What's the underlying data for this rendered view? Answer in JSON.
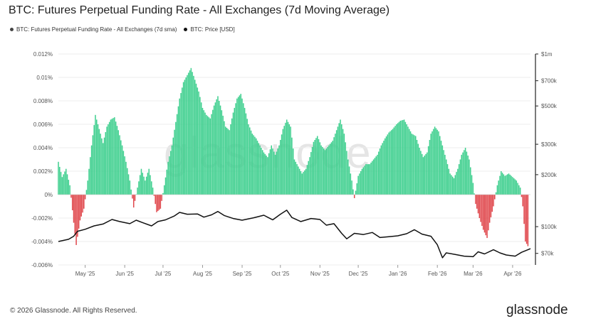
{
  "title": "BTC: Futures Perpetual Funding Rate - All Exchanges (7d Moving Average)",
  "watermark": "glassnode",
  "footer": "© 2026 Glassnode. All Rights Reserved.",
  "brand": "glassnode",
  "colors": {
    "positive": "#3ecf8e",
    "negative": "#e0474c",
    "price": "#111111",
    "grid": "#ececec",
    "axis_text": "#555555"
  },
  "chart_data": {
    "type": "bar",
    "title": "BTC: Futures Perpetual Funding Rate - All Exchanges (7d Moving Average)",
    "legend_position": "top-left",
    "grid": true,
    "x_start": "2025-04-10",
    "x_end": "2026-04-15",
    "x_ticks": [
      {
        "label": "May '25",
        "date": "2025-05-01"
      },
      {
        "label": "Jun '25",
        "date": "2025-06-01"
      },
      {
        "label": "Jul '25",
        "date": "2025-07-01"
      },
      {
        "label": "Aug '25",
        "date": "2025-08-01"
      },
      {
        "label": "Sep '25",
        "date": "2025-09-01"
      },
      {
        "label": "Oct '25",
        "date": "2025-10-01"
      },
      {
        "label": "Nov '25",
        "date": "2025-11-01"
      },
      {
        "label": "Dec '25",
        "date": "2025-12-01"
      },
      {
        "label": "Jan '26",
        "date": "2026-01-01"
      },
      {
        "label": "Feb '26",
        "date": "2026-02-01"
      },
      {
        "label": "Mar '26",
        "date": "2026-03-01"
      },
      {
        "label": "Apr '26",
        "date": "2026-04-01"
      }
    ],
    "y_left": {
      "ylim": [
        -0.006,
        0.012
      ],
      "ticks": [
        {
          "v": 0.012,
          "label": "0.012%"
        },
        {
          "v": 0.01,
          "label": "0.01%"
        },
        {
          "v": 0.008,
          "label": "0.008%"
        },
        {
          "v": 0.006,
          "label": "0.006%"
        },
        {
          "v": 0.004,
          "label": "0.004%"
        },
        {
          "v": 0.002,
          "label": "0.002%"
        },
        {
          "v": 0,
          "label": "0%"
        },
        {
          "v": -0.002,
          "label": "-0.002%"
        },
        {
          "v": -0.004,
          "label": "-0.004%"
        },
        {
          "v": -0.006,
          "label": "-0.006%"
        }
      ]
    },
    "y_right": {
      "scale": "log",
      "ylim": [
        60000,
        1000000
      ],
      "ticks": [
        {
          "v": 1000000,
          "label": "$1m"
        },
        {
          "v": 700000,
          "label": "$700k"
        },
        {
          "v": 500000,
          "label": "$500k"
        },
        {
          "v": 300000,
          "label": "$300k"
        },
        {
          "v": 200000,
          "label": "$200k"
        },
        {
          "v": 100000,
          "label": "$100k"
        },
        {
          "v": 70000,
          "label": "$70k"
        }
      ]
    },
    "series": [
      {
        "name": "BTC: Futures Perpetual Funding Rate - All Exchanges (7d sma)",
        "kind": "bar",
        "unit": "%",
        "points": [
          [
            "2025-04-10",
            0.0028
          ],
          [
            "2025-04-13",
            0.0015
          ],
          [
            "2025-04-16",
            0.0022
          ],
          [
            "2025-04-19",
            0.0008
          ],
          [
            "2025-04-22",
            -0.0024
          ],
          [
            "2025-04-24",
            -0.0043
          ],
          [
            "2025-04-27",
            -0.0022
          ],
          [
            "2025-04-30",
            -0.0012
          ],
          [
            "2025-05-03",
            0.0012
          ],
          [
            "2025-05-06",
            0.0042
          ],
          [
            "2025-05-09",
            0.0068
          ],
          [
            "2025-05-12",
            0.0056
          ],
          [
            "2025-05-15",
            0.0044
          ],
          [
            "2025-05-18",
            0.0058
          ],
          [
            "2025-05-21",
            0.0064
          ],
          [
            "2025-05-24",
            0.0066
          ],
          [
            "2025-05-27",
            0.0055
          ],
          [
            "2025-05-30",
            0.0042
          ],
          [
            "2025-06-02",
            0.0028
          ],
          [
            "2025-06-05",
            0.0012
          ],
          [
            "2025-06-08",
            -0.0011
          ],
          [
            "2025-06-11",
            0.0006
          ],
          [
            "2025-06-14",
            0.0022
          ],
          [
            "2025-06-17",
            0.0012
          ],
          [
            "2025-06-20",
            0.0022
          ],
          [
            "2025-06-23",
            0.0006
          ],
          [
            "2025-06-26",
            -0.0015
          ],
          [
            "2025-06-29",
            -0.0012
          ],
          [
            "2025-07-02",
            0.0008
          ],
          [
            "2025-07-05",
            0.0028
          ],
          [
            "2025-07-08",
            0.0042
          ],
          [
            "2025-07-11",
            0.0062
          ],
          [
            "2025-07-14",
            0.0082
          ],
          [
            "2025-07-17",
            0.0096
          ],
          [
            "2025-07-20",
            0.0102
          ],
          [
            "2025-07-23",
            0.0108
          ],
          [
            "2025-07-26",
            0.0098
          ],
          [
            "2025-07-29",
            0.0088
          ],
          [
            "2025-08-01",
            0.0074
          ],
          [
            "2025-08-04",
            0.0068
          ],
          [
            "2025-08-07",
            0.0065
          ],
          [
            "2025-08-10",
            0.0076
          ],
          [
            "2025-08-13",
            0.0084
          ],
          [
            "2025-08-16",
            0.0072
          ],
          [
            "2025-08-19",
            0.0058
          ],
          [
            "2025-08-22",
            0.0055
          ],
          [
            "2025-08-25",
            0.007
          ],
          [
            "2025-08-28",
            0.0082
          ],
          [
            "2025-08-31",
            0.0086
          ],
          [
            "2025-09-03",
            0.0074
          ],
          [
            "2025-09-06",
            0.006
          ],
          [
            "2025-09-09",
            0.0052
          ],
          [
            "2025-09-12",
            0.0048
          ],
          [
            "2025-09-15",
            0.0042
          ],
          [
            "2025-09-18",
            0.0036
          ],
          [
            "2025-09-21",
            0.0032
          ],
          [
            "2025-09-24",
            0.0042
          ],
          [
            "2025-09-27",
            0.0034
          ],
          [
            "2025-09-30",
            0.0042
          ],
          [
            "2025-10-03",
            0.0056
          ],
          [
            "2025-10-06",
            0.0064
          ],
          [
            "2025-10-09",
            0.0058
          ],
          [
            "2025-10-12",
            0.003
          ],
          [
            "2025-10-15",
            0.0024
          ],
          [
            "2025-10-18",
            0.0018
          ],
          [
            "2025-10-21",
            0.0022
          ],
          [
            "2025-10-24",
            0.0032
          ],
          [
            "2025-10-27",
            0.0045
          ],
          [
            "2025-10-30",
            0.005
          ],
          [
            "2025-11-02",
            0.0042
          ],
          [
            "2025-11-05",
            0.0038
          ],
          [
            "2025-11-08",
            0.0042
          ],
          [
            "2025-11-11",
            0.0046
          ],
          [
            "2025-11-14",
            0.0055
          ],
          [
            "2025-11-17",
            0.0064
          ],
          [
            "2025-11-20",
            0.0052
          ],
          [
            "2025-11-23",
            0.003
          ],
          [
            "2025-11-26",
            0.0012
          ],
          [
            "2025-11-28",
            -0.0003
          ],
          [
            "2025-12-01",
            0.0016
          ],
          [
            "2025-12-04",
            0.0022
          ],
          [
            "2025-12-07",
            0.0026
          ],
          [
            "2025-12-10",
            0.0026
          ],
          [
            "2025-12-13",
            0.003
          ],
          [
            "2025-12-16",
            0.0034
          ],
          [
            "2025-12-19",
            0.0042
          ],
          [
            "2025-12-22",
            0.0048
          ],
          [
            "2025-12-25",
            0.0053
          ],
          [
            "2025-12-28",
            0.0056
          ],
          [
            "2025-12-31",
            0.006
          ],
          [
            "2026-01-03",
            0.0063
          ],
          [
            "2026-01-06",
            0.0064
          ],
          [
            "2026-01-09",
            0.0058
          ],
          [
            "2026-01-12",
            0.0052
          ],
          [
            "2026-01-15",
            0.005
          ],
          [
            "2026-01-18",
            0.004
          ],
          [
            "2026-01-21",
            0.0032
          ],
          [
            "2026-01-24",
            0.0036
          ],
          [
            "2026-01-27",
            0.0052
          ],
          [
            "2026-01-30",
            0.0058
          ],
          [
            "2026-02-02",
            0.0054
          ],
          [
            "2026-02-05",
            0.0042
          ],
          [
            "2026-02-08",
            0.003
          ],
          [
            "2026-02-11",
            0.0018
          ],
          [
            "2026-02-14",
            0.0014
          ],
          [
            "2026-02-17",
            0.0022
          ],
          [
            "2026-02-20",
            0.0034
          ],
          [
            "2026-02-23",
            0.004
          ],
          [
            "2026-02-26",
            0.003
          ],
          [
            "2026-03-01",
            0.001
          ],
          [
            "2026-03-03",
            -0.0008
          ],
          [
            "2026-03-06",
            -0.002
          ],
          [
            "2026-03-09",
            -0.003
          ],
          [
            "2026-03-12",
            -0.0037
          ],
          [
            "2026-03-14",
            -0.0024
          ],
          [
            "2026-03-17",
            -0.001
          ],
          [
            "2026-03-20",
            0.0008
          ],
          [
            "2026-03-23",
            0.002
          ],
          [
            "2026-03-26",
            0.0016
          ],
          [
            "2026-03-29",
            0.0018
          ],
          [
            "2026-04-01",
            0.0015
          ],
          [
            "2026-04-04",
            0.0012
          ],
          [
            "2026-04-07",
            0.0006
          ],
          [
            "2026-04-09",
            -0.001
          ],
          [
            "2026-04-11",
            -0.004
          ],
          [
            "2026-04-13",
            -0.0044
          ]
        ]
      },
      {
        "name": "BTC: Price [USD]",
        "kind": "line",
        "unit": "USD",
        "points": [
          [
            "2025-04-10",
            82000
          ],
          [
            "2025-04-18",
            84500
          ],
          [
            "2025-04-22",
            88000
          ],
          [
            "2025-04-25",
            94000
          ],
          [
            "2025-05-01",
            96500
          ],
          [
            "2025-05-08",
            101000
          ],
          [
            "2025-05-15",
            103500
          ],
          [
            "2025-05-22",
            110000
          ],
          [
            "2025-05-28",
            107000
          ],
          [
            "2025-06-05",
            104000
          ],
          [
            "2025-06-10",
            109000
          ],
          [
            "2025-06-15",
            105500
          ],
          [
            "2025-06-22",
            101000
          ],
          [
            "2025-06-27",
            107000
          ],
          [
            "2025-07-03",
            109500
          ],
          [
            "2025-07-10",
            115500
          ],
          [
            "2025-07-14",
            121000
          ],
          [
            "2025-07-20",
            118000
          ],
          [
            "2025-07-28",
            118500
          ],
          [
            "2025-08-02",
            113500
          ],
          [
            "2025-08-08",
            117000
          ],
          [
            "2025-08-13",
            122500
          ],
          [
            "2025-08-18",
            116000
          ],
          [
            "2025-08-25",
            111500
          ],
          [
            "2025-09-01",
            109000
          ],
          [
            "2025-09-10",
            112500
          ],
          [
            "2025-09-18",
            116500
          ],
          [
            "2025-09-25",
            109500
          ],
          [
            "2025-10-01",
            118000
          ],
          [
            "2025-10-06",
            124500
          ],
          [
            "2025-10-10",
            113000
          ],
          [
            "2025-10-17",
            107000
          ],
          [
            "2025-10-25",
            111500
          ],
          [
            "2025-11-01",
            110000
          ],
          [
            "2025-11-06",
            102000
          ],
          [
            "2025-11-12",
            104000
          ],
          [
            "2025-11-18",
            91500
          ],
          [
            "2025-11-22",
            85000
          ],
          [
            "2025-11-28",
            91500
          ],
          [
            "2025-12-05",
            90000
          ],
          [
            "2025-12-12",
            92500
          ],
          [
            "2025-12-18",
            86500
          ],
          [
            "2025-12-25",
            87500
          ],
          [
            "2026-01-01",
            88500
          ],
          [
            "2026-01-08",
            91000
          ],
          [
            "2026-01-14",
            96000
          ],
          [
            "2026-01-20",
            90500
          ],
          [
            "2026-01-27",
            88000
          ],
          [
            "2026-02-01",
            78500
          ],
          [
            "2026-02-05",
            66000
          ],
          [
            "2026-02-08",
            70500
          ],
          [
            "2026-02-15",
            69000
          ],
          [
            "2026-02-22",
            67500
          ],
          [
            "2026-03-01",
            67000
          ],
          [
            "2026-03-05",
            71500
          ],
          [
            "2026-03-10",
            69500
          ],
          [
            "2026-03-17",
            73500
          ],
          [
            "2026-03-22",
            70500
          ],
          [
            "2026-03-27",
            68500
          ],
          [
            "2026-04-03",
            67500
          ],
          [
            "2026-04-08",
            71000
          ],
          [
            "2026-04-12",
            73000
          ],
          [
            "2026-04-15",
            74500
          ]
        ]
      }
    ]
  }
}
